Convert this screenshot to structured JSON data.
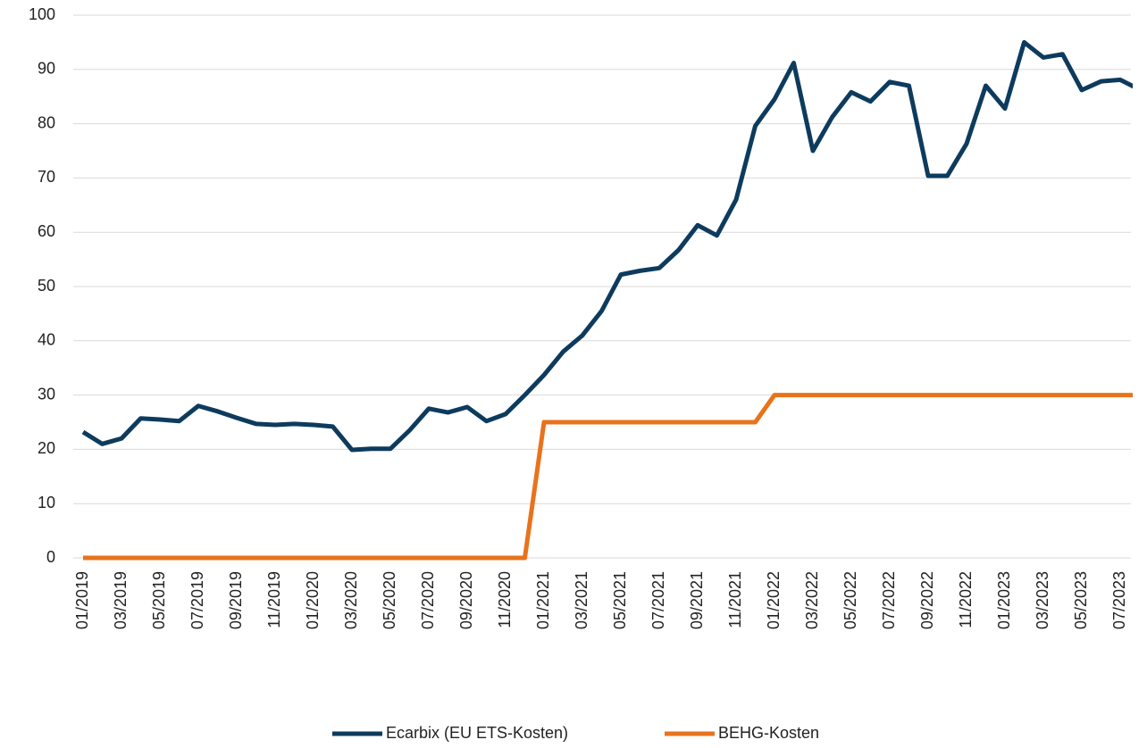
{
  "chart_data": {
    "type": "line",
    "categories": [
      "01/2019",
      null,
      "03/2019",
      null,
      "05/2019",
      null,
      "07/2019",
      null,
      "09/2019",
      null,
      "11/2019",
      null,
      "01/2020",
      null,
      "03/2020",
      null,
      "05/2020",
      null,
      "07/2020",
      null,
      "09/2020",
      null,
      "11/2020",
      null,
      "01/2021",
      null,
      "03/2021",
      null,
      "05/2021",
      null,
      "07/2021",
      null,
      "09/2021",
      null,
      "11/2021",
      null,
      "01/2022",
      null,
      "03/2022",
      null,
      "05/2022",
      null,
      "07/2022",
      null,
      "09/2022",
      null,
      "11/2022",
      null,
      "01/2023",
      null,
      "03/2023",
      null,
      "05/2023",
      null,
      "07/2023",
      null
    ],
    "series": [
      {
        "name": "Ecarbix (EU ETS-Kosten)",
        "color": "#0d3b5e",
        "values": [
          23.2,
          21,
          22,
          25.7,
          25.5,
          25.2,
          28,
          27,
          25.8,
          24.7,
          24.5,
          24.7,
          24.5,
          24.2,
          19.9,
          20.1,
          20.1,
          23.5,
          27.5,
          26.8,
          27.8,
          25.2,
          26.5,
          30,
          33.7,
          38,
          41,
          45.5,
          52.2,
          52.9,
          53.4,
          56.7,
          61.3,
          59.4,
          66,
          79.6,
          84.5,
          91.2,
          75,
          81.2,
          85.8,
          84.1,
          87.7,
          87,
          70.4,
          70.4,
          76.3,
          87,
          82.8,
          95,
          92.2,
          92.8,
          86.2,
          87.8,
          88.1,
          86.3
        ]
      },
      {
        "name": "BEHG-Kosten",
        "color": "#e8731c",
        "values": [
          0,
          0,
          0,
          0,
          0,
          0,
          0,
          0,
          0,
          0,
          0,
          0,
          0,
          0,
          0,
          0,
          0,
          0,
          0,
          0,
          0,
          0,
          0,
          0,
          25,
          25,
          25,
          25,
          25,
          25,
          25,
          25,
          25,
          25,
          25,
          25,
          30,
          30,
          30,
          30,
          30,
          30,
          30,
          30,
          30,
          30,
          30,
          30,
          30,
          30,
          30,
          30,
          30,
          30,
          30,
          30
        ]
      }
    ],
    "ylim": [
      0,
      100
    ],
    "yticks": [
      0,
      10,
      20,
      30,
      40,
      50,
      60,
      70,
      80,
      90,
      100
    ],
    "grid": true,
    "legend": "bottom"
  }
}
